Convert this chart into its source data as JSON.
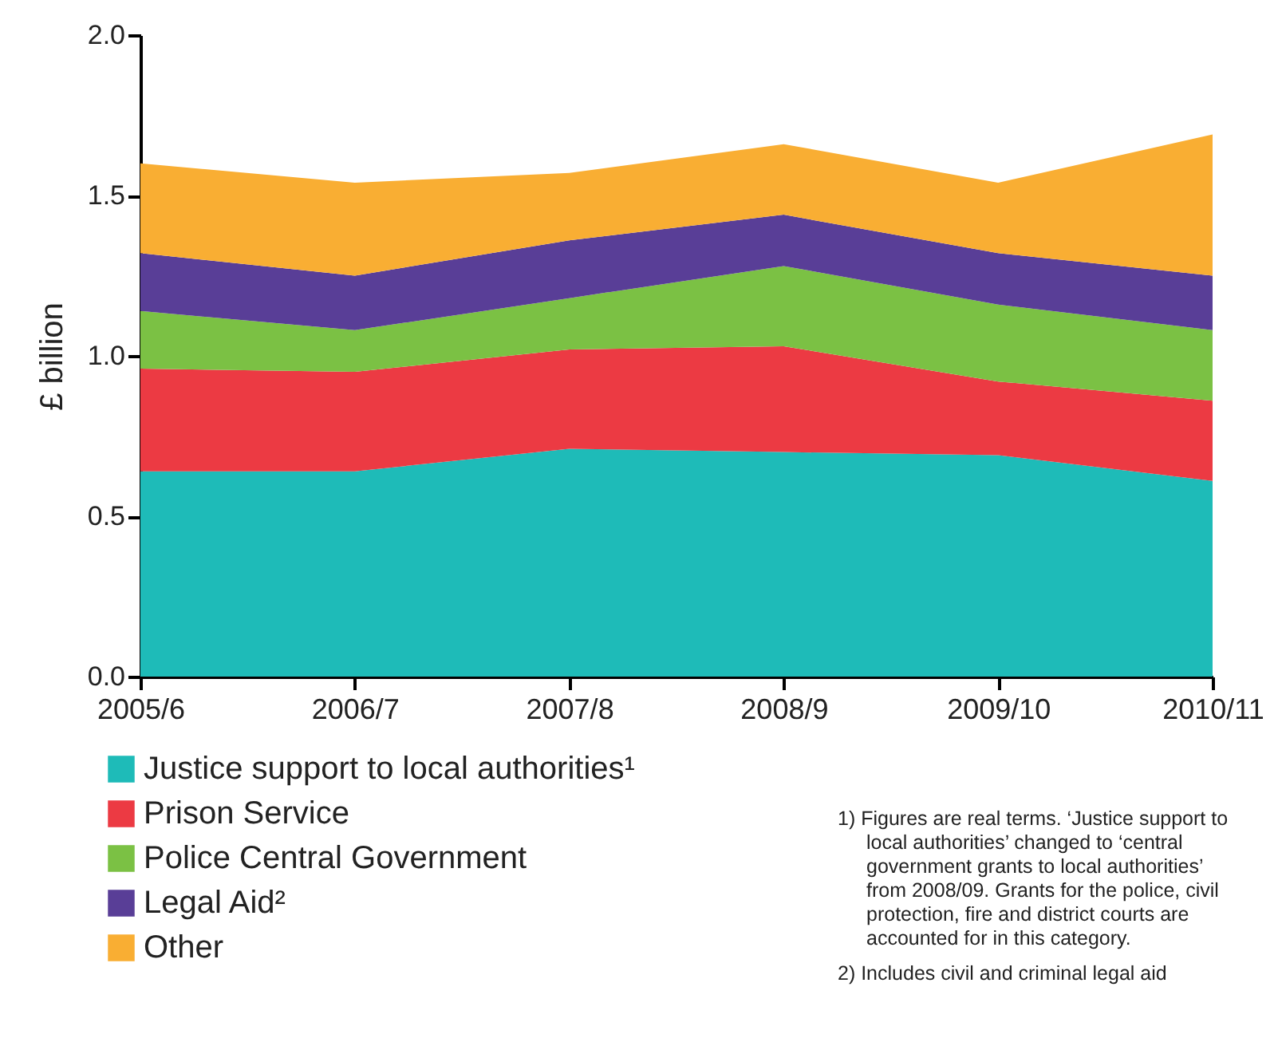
{
  "chart_data": {
    "type": "area",
    "stacked": true,
    "ylabel": "£ billion",
    "categories": [
      "2005/6",
      "2006/7",
      "2007/8",
      "2008/9",
      "2009/10",
      "2010/11"
    ],
    "series": [
      {
        "name": "Justice support to local authorities¹",
        "color": "#1ebbb8",
        "values": [
          0.64,
          0.64,
          0.71,
          0.7,
          0.69,
          0.61
        ]
      },
      {
        "name": "Prison Service",
        "color": "#ec3a43",
        "values": [
          0.32,
          0.31,
          0.31,
          0.33,
          0.23,
          0.25
        ]
      },
      {
        "name": "Police Central Government",
        "color": "#7bc144",
        "values": [
          0.18,
          0.13,
          0.16,
          0.25,
          0.24,
          0.22
        ]
      },
      {
        "name": "Legal Aid²",
        "color": "#593e97",
        "values": [
          0.18,
          0.17,
          0.18,
          0.16,
          0.16,
          0.17
        ]
      },
      {
        "name": "Other",
        "color": "#f9ae33",
        "values": [
          0.28,
          0.29,
          0.21,
          0.22,
          0.22,
          0.44
        ]
      }
    ],
    "ylim": [
      0,
      2.0
    ],
    "yticks": [
      {
        "value": 0,
        "label": "0.0"
      },
      {
        "value": 0.5,
        "label": "0.5"
      },
      {
        "value": 1,
        "label": "1.0"
      },
      {
        "value": 1.5,
        "label": "1.5"
      },
      {
        "value": 2,
        "label": "2.0"
      }
    ],
    "grid": false,
    "legend": "bottom left",
    "annotations": [
      "1) Figures are real terms. ‘Justice support to local authorities’ changed to ‘central government grants to local authorities’ from 2008/09. Grants for the police, civil protection, fire and district courts are accounted for in this category.",
      "2) Includes civil and criminal legal aid"
    ]
  }
}
